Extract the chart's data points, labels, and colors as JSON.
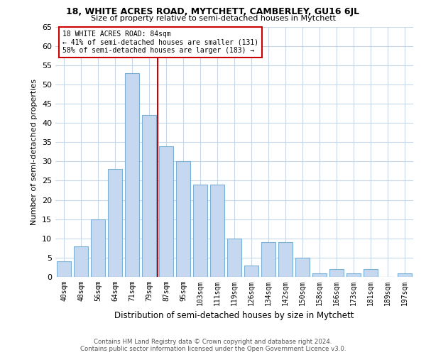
{
  "title": "18, WHITE ACRES ROAD, MYTCHETT, CAMBERLEY, GU16 6JL",
  "subtitle": "Size of property relative to semi-detached houses in Mytchett",
  "xlabel": "Distribution of semi-detached houses by size in Mytchett",
  "ylabel": "Number of semi-detached properties",
  "bar_labels": [
    "40sqm",
    "48sqm",
    "56sqm",
    "64sqm",
    "71sqm",
    "79sqm",
    "87sqm",
    "95sqm",
    "103sqm",
    "111sqm",
    "119sqm",
    "126sqm",
    "134sqm",
    "142sqm",
    "150sqm",
    "158sqm",
    "166sqm",
    "173sqm",
    "181sqm",
    "189sqm",
    "197sqm"
  ],
  "bar_values": [
    4,
    8,
    15,
    28,
    53,
    42,
    34,
    30,
    24,
    24,
    10,
    3,
    9,
    9,
    5,
    1,
    2,
    1,
    2,
    0,
    1
  ],
  "bar_color": "#c5d8f0",
  "bar_edge_color": "#7bafd4",
  "property_label": "18 WHITE ACRES ROAD: 84sqm",
  "pct_smaller": 41,
  "pct_larger": 58,
  "n_smaller": 131,
  "n_larger": 183,
  "vline_color": "#cc0000",
  "vline_x_index": 5.5,
  "annotation_box_color": "#cc0000",
  "ylim": [
    0,
    65
  ],
  "yticks": [
    0,
    5,
    10,
    15,
    20,
    25,
    30,
    35,
    40,
    45,
    50,
    55,
    60,
    65
  ],
  "footer_line1": "Contains HM Land Registry data © Crown copyright and database right 2024.",
  "footer_line2": "Contains public sector information licensed under the Open Government Licence v3.0.",
  "background_color": "#ffffff",
  "grid_color": "#c8d8e8"
}
